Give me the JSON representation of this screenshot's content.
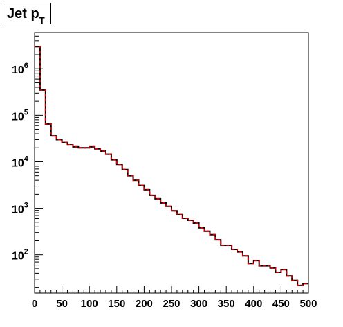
{
  "title": {
    "main": "Jet p",
    "subscript": "T"
  },
  "chart_data": {
    "type": "line",
    "title": "Jet pT",
    "xlabel": "",
    "ylabel": "",
    "xlim": [
      0,
      500
    ],
    "ylim": [
      15,
      6000000
    ],
    "log_y": true,
    "grid": false,
    "bin_width": 10,
    "x_tick_labels": [
      "0",
      "50",
      "100",
      "150",
      "200",
      "250",
      "300",
      "350",
      "400",
      "450",
      "500"
    ],
    "x_tick_values": [
      0,
      50,
      100,
      150,
      200,
      250,
      300,
      350,
      400,
      450,
      500
    ],
    "y_tick_labels": [
      {
        "base": "10",
        "exp": "2",
        "value": 100
      },
      {
        "base": "10",
        "exp": "3",
        "value": 1000
      },
      {
        "base": "10",
        "exp": "4",
        "value": 10000
      },
      {
        "base": "10",
        "exp": "5",
        "value": 100000
      },
      {
        "base": "10",
        "exp": "6",
        "value": 1000000
      }
    ],
    "x": [
      0,
      10,
      20,
      30,
      40,
      50,
      60,
      70,
      80,
      90,
      100,
      110,
      120,
      130,
      140,
      150,
      160,
      170,
      180,
      190,
      200,
      210,
      220,
      230,
      240,
      250,
      260,
      270,
      280,
      290,
      300,
      310,
      320,
      330,
      340,
      350,
      360,
      370,
      380,
      390,
      400,
      410,
      420,
      430,
      440,
      450,
      460,
      470,
      480,
      490
    ],
    "series": [
      {
        "color": "#000000",
        "style": "solid",
        "values": [
          3000000,
          350000,
          65000,
          36000,
          30000,
          26000,
          23000,
          21000,
          20000,
          20000,
          21000,
          19000,
          17000,
          14500,
          11000,
          8800,
          6800,
          5000,
          4000,
          3100,
          2500,
          1900,
          1600,
          1300,
          1100,
          880,
          730,
          610,
          550,
          480,
          380,
          320,
          270,
          210,
          160,
          160,
          130,
          115,
          95,
          65,
          75,
          58,
          58,
          52,
          42,
          48,
          35,
          28,
          22,
          24
        ]
      },
      {
        "color": "#cc0000",
        "style": "dashed",
        "values": [
          3000000,
          350000,
          65000,
          36000,
          30000,
          26000,
          23000,
          21000,
          20000,
          20000,
          21000,
          19000,
          17000,
          14500,
          11000,
          8800,
          6800,
          5000,
          4000,
          3100,
          2500,
          1900,
          1600,
          1300,
          1100,
          880,
          730,
          610,
          550,
          480,
          380,
          320,
          270,
          210,
          160,
          160,
          130,
          115,
          95,
          65,
          75,
          58,
          58,
          52,
          42,
          48,
          35,
          28,
          22,
          24
        ]
      }
    ]
  }
}
